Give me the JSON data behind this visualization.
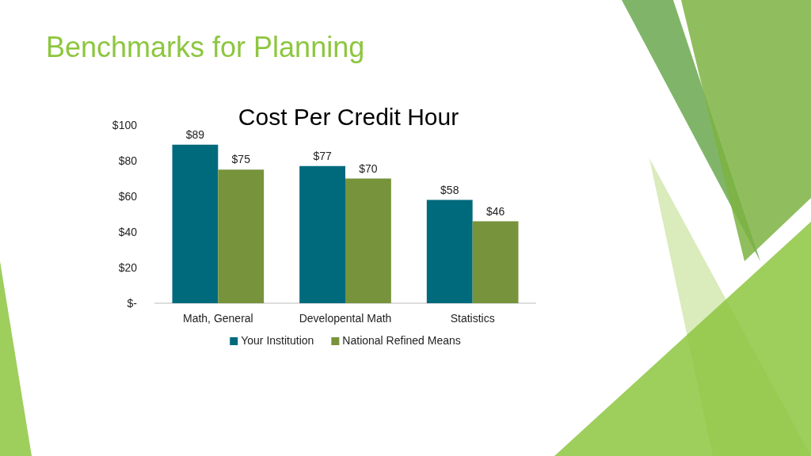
{
  "chart_data": {
    "type": "bar",
    "title": "Benchmarks for Planning",
    "subtitle": "Cost Per Credit Hour",
    "categories": [
      "Math, General",
      "Developental Math",
      "Statistics"
    ],
    "series": [
      {
        "name": "Your Institution",
        "color": "#006a7d",
        "values": [
          89,
          77,
          58
        ],
        "value_labels": [
          "$89",
          "$77",
          "$58"
        ]
      },
      {
        "name": "National  Refined Means",
        "color": "#77933c",
        "values": [
          75,
          70,
          46
        ],
        "value_labels": [
          "$75",
          "$70",
          "$46"
        ]
      }
    ],
    "ylim": [
      0,
      100
    ],
    "yticks": [
      {
        "value": 0,
        "label": "$-"
      },
      {
        "value": 20,
        "label": "$20"
      },
      {
        "value": 40,
        "label": "$40"
      },
      {
        "value": 60,
        "label": "$60"
      },
      {
        "value": 80,
        "label": "$80"
      },
      {
        "value": 100,
        "label": "$100"
      }
    ],
    "grid": false,
    "legend": "bottom"
  }
}
